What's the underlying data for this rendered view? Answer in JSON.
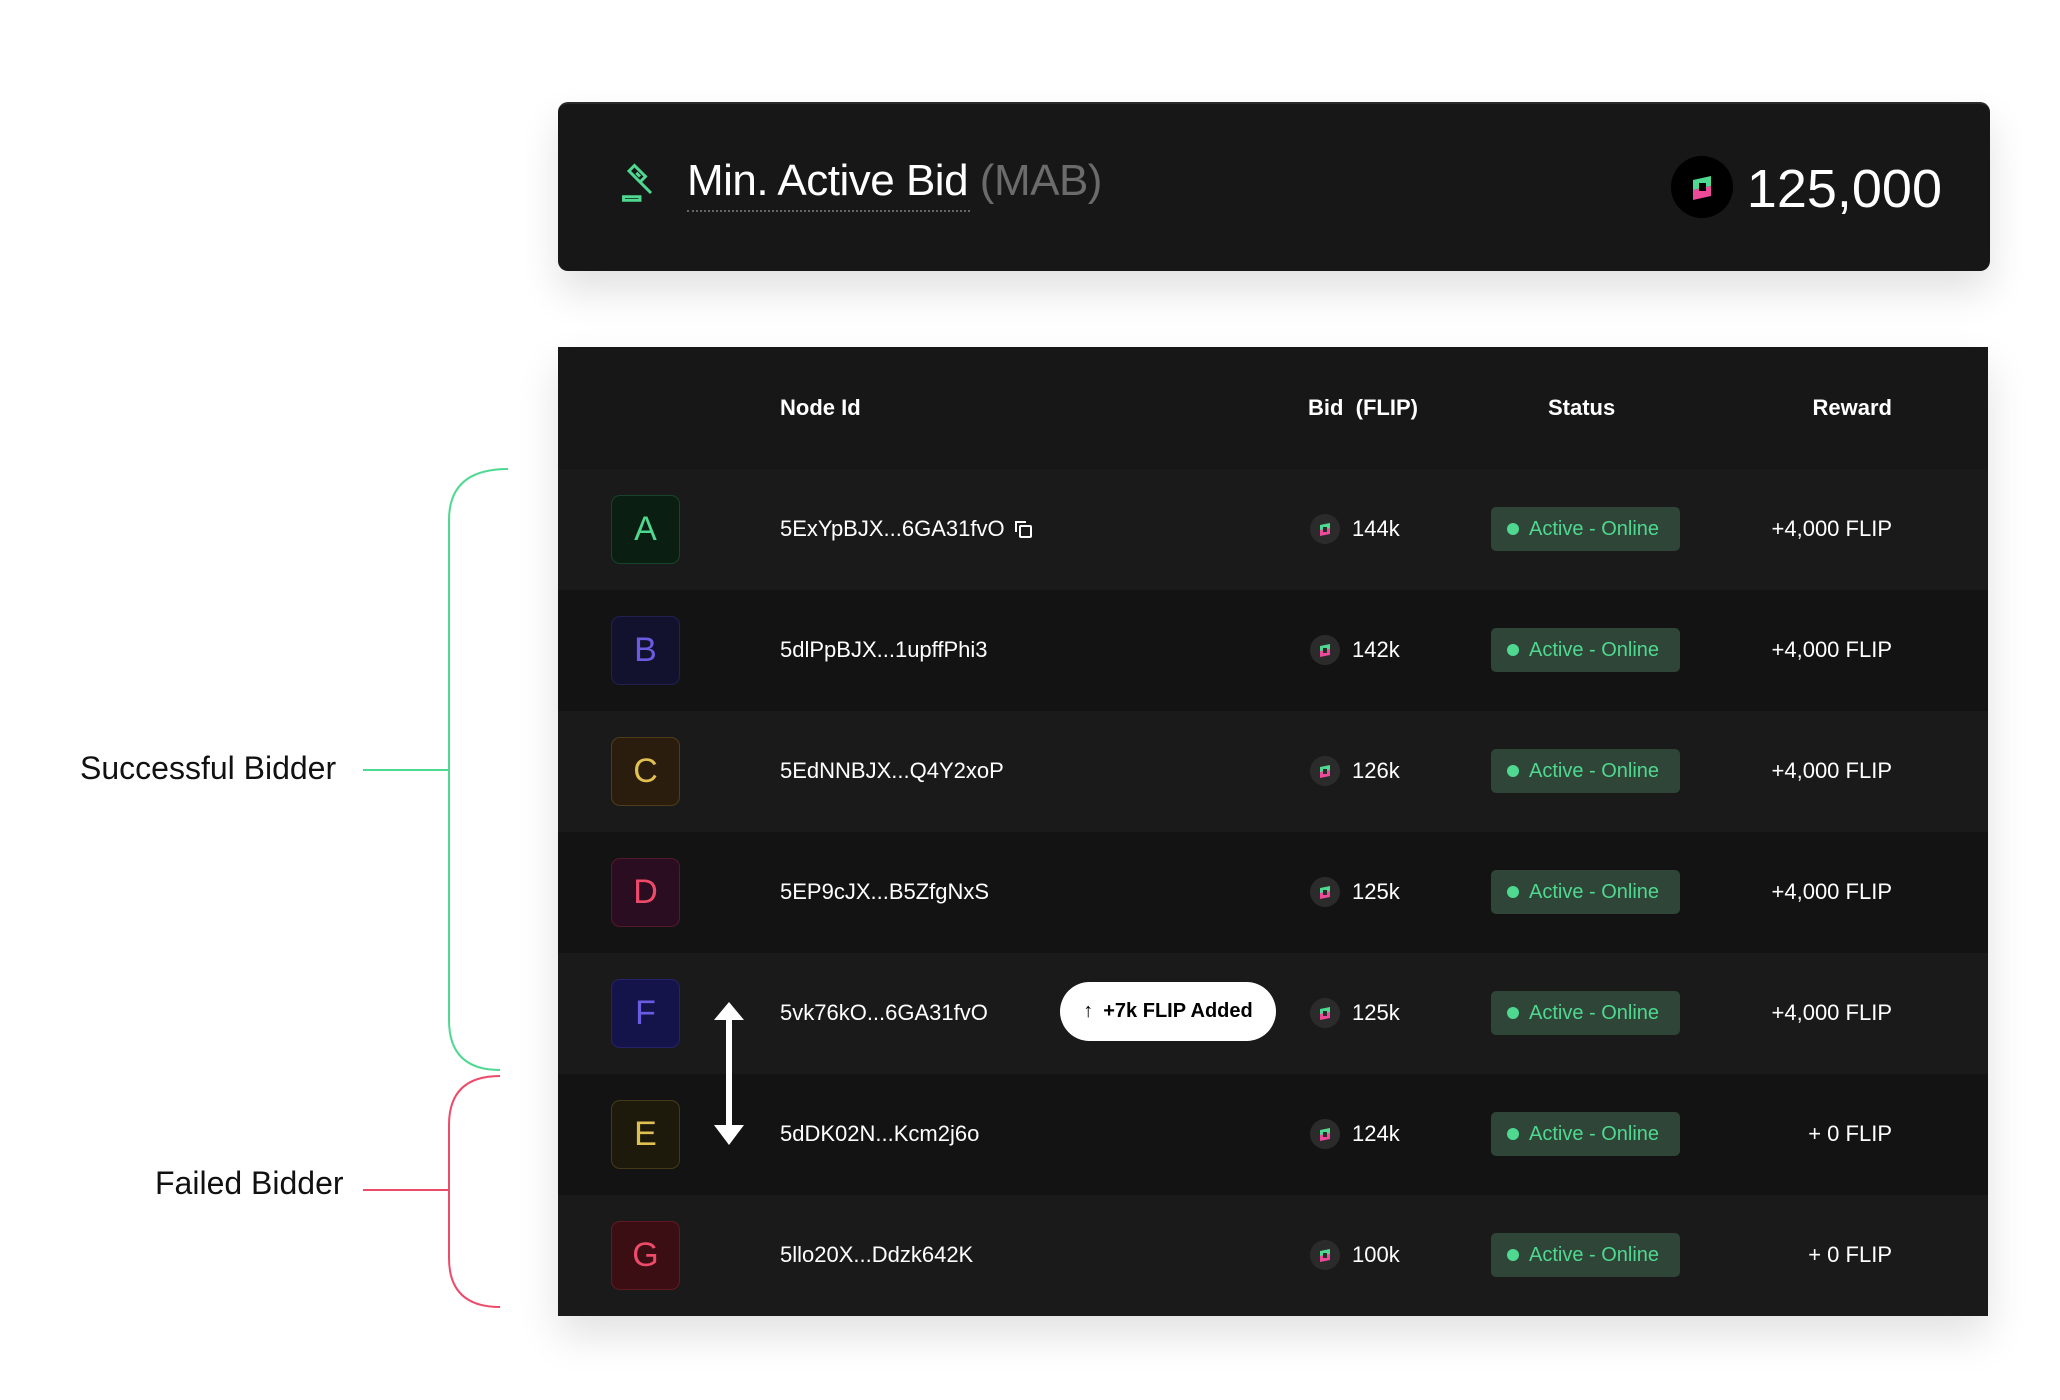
{
  "header": {
    "title": "Min. Active Bid",
    "title_suffix": "(MAB)",
    "amount": "125,000",
    "icon": "gavel-icon"
  },
  "table": {
    "columns": {
      "node_id": "Node Id",
      "bid": "Bid  (FLIP)",
      "status": "Status",
      "reward": "Reward"
    },
    "rows": [
      {
        "letter": "A",
        "node_id": "5ExYpBJX...6GA31fvO",
        "bid": "144k",
        "status": "Active - Online",
        "reward": "+4,000 FLIP",
        "fg": "#4fd890",
        "bg": "#0a1f12"
      },
      {
        "letter": "B",
        "node_id": "5dlPpBJX...1upffPhi3",
        "bid": "142k",
        "status": "Active - Online",
        "reward": "+4,000 FLIP",
        "fg": "#6a5ce0",
        "bg": "#12122e"
      },
      {
        "letter": "C",
        "node_id": "5EdNNBJX...Q4Y2xoP",
        "bid": "126k",
        "status": "Active - Online",
        "reward": "+4,000 FLIP",
        "fg": "#e0c050",
        "bg": "#2a1d0e"
      },
      {
        "letter": "D",
        "node_id": "5EP9cJX...B5ZfgNxS",
        "bid": "125k",
        "status": "Active - Online",
        "reward": "+4,000 FLIP",
        "fg": "#ee4a6a",
        "bg": "#2a0d20"
      },
      {
        "letter": "F",
        "node_id": "5vk76kO...6GA31fvO",
        "bid": "125k",
        "status": "Active - Online",
        "reward": "+4,000 FLIP",
        "fg": "#6a5ce0",
        "bg": "#14144a"
      },
      {
        "letter": "E",
        "node_id": "5dDK02N...Kcm2j6o",
        "bid": "124k",
        "status": "Active - Online",
        "reward": "+ 0 FLIP",
        "fg": "#e0c050",
        "bg": "#1d1a0c"
      },
      {
        "letter": "G",
        "node_id": "5llo20X...Ddzk642K",
        "bid": "100k",
        "status": "Active - Online",
        "reward": "+ 0 FLIP",
        "fg": "#ee4a6a",
        "bg": "#3a0e12"
      }
    ],
    "added_pill": "+7k FLIP Added"
  },
  "annotations": {
    "successful": "Successful Bidder",
    "failed": "Failed Bidder",
    "success_color": "#4fd890",
    "fail_color": "#ee4a6a"
  }
}
